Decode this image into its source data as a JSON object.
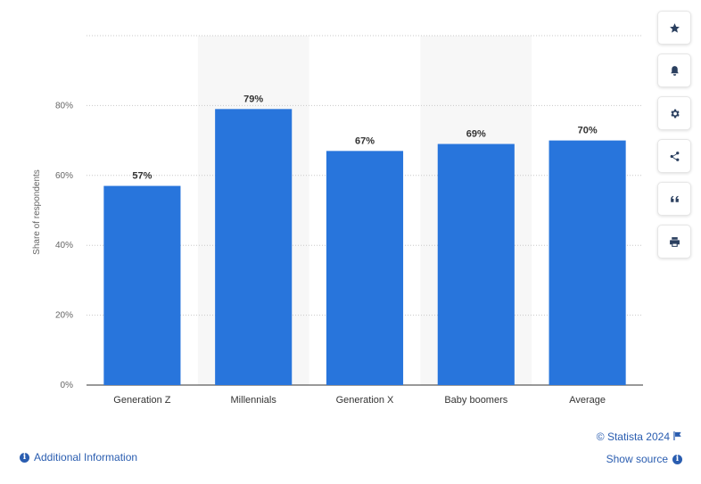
{
  "chart_data": {
    "type": "bar",
    "categories": [
      "Generation Z",
      "Millennials",
      "Generation X",
      "Baby boomers",
      "Average"
    ],
    "values": [
      57,
      79,
      67,
      69,
      70
    ],
    "value_labels": [
      "57%",
      "79%",
      "67%",
      "69%",
      "70%"
    ],
    "ylabel": "Share of respondents",
    "ylim": [
      0,
      100
    ],
    "yticks": [
      0,
      20,
      40,
      60,
      80
    ],
    "ytick_labels": [
      "0%",
      "20%",
      "40%",
      "60%",
      "80%"
    ],
    "grid": true,
    "bar_color": "#2875dc",
    "band_color": "#f7f7f7"
  },
  "toolbar": {
    "items": [
      "star-icon",
      "bell-icon",
      "gear-icon",
      "share-icon",
      "quote-icon",
      "print-icon"
    ]
  },
  "footer": {
    "credit": "© Statista 2024",
    "show_source": "Show source",
    "additional_info": "Additional Information"
  },
  "colors": {
    "link": "#2a5db0",
    "icon": "#2a3f5f"
  }
}
